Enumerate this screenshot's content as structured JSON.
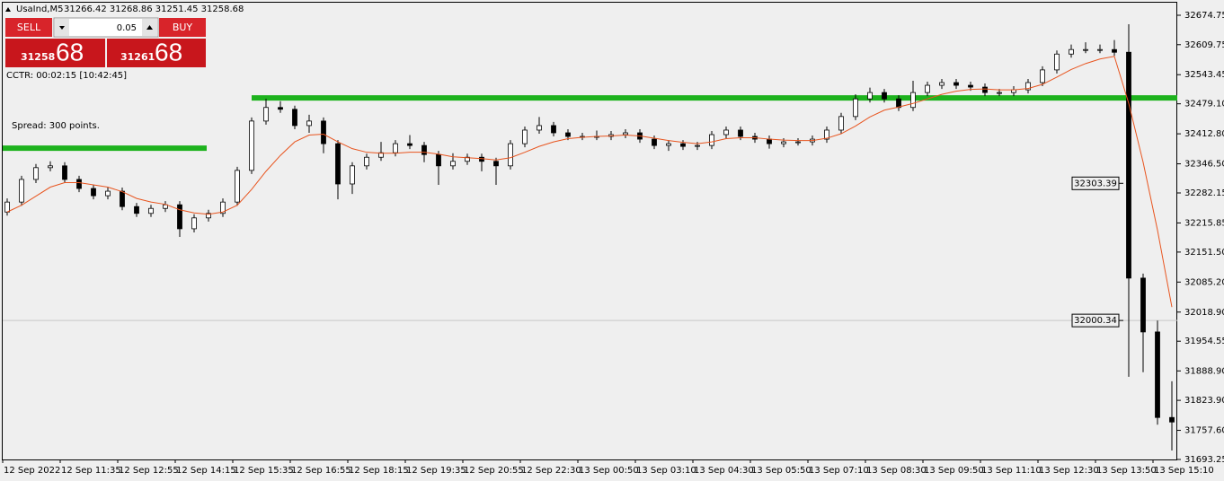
{
  "header": {
    "symbol": "UsaInd,M5",
    "ohlc": "31266.42 31268.86 31251.45 31258.68"
  },
  "trade_panel": {
    "sell": "SELL",
    "buy": "BUY",
    "lot": "0.05",
    "bid_main": "31258",
    "bid_big": "68",
    "ask_main": "31261",
    "ask_big": "68",
    "cctr": "CCTR: 00:02:15 [10:42:45]",
    "spread": "Spread: 300 points."
  },
  "chart_data": {
    "type": "candlestick",
    "x_labels": [
      "12 Sep 2022",
      "12 Sep 11:35",
      "12 Sep 12:55",
      "12 Sep 14:15",
      "12 Sep 15:35",
      "12 Sep 16:55",
      "12 Sep 18:15",
      "12 Sep 19:35",
      "12 Sep 20:55",
      "12 Sep 22:30",
      "13 Sep 00:50",
      "13 Sep 03:10",
      "13 Sep 04:30",
      "13 Sep 05:50",
      "13 Sep 07:10",
      "13 Sep 08:30",
      "13 Sep 09:50",
      "13 Sep 11:10",
      "13 Sep 12:30",
      "13 Sep 13:50",
      "13 Sep 15:10"
    ],
    "open": [
      32240,
      32262,
      32312,
      32338,
      32342,
      32312,
      32292,
      32276,
      32286,
      32252,
      32237,
      32248,
      32256,
      32203,
      32227,
      32237,
      32262,
      32332,
      32441,
      32471,
      32467,
      32431,
      32441,
      32391,
      32302,
      32342,
      32361,
      32371,
      32391,
      32387,
      32367,
      32342,
      32352,
      32361,
      32352,
      32342,
      32391,
      32421,
      32431,
      32415,
      32407,
      32407,
      32407,
      32411,
      32415,
      32401,
      32387,
      32391,
      32385,
      32387,
      32411,
      32421,
      32407,
      32401,
      32391,
      32395,
      32395,
      32401,
      32421,
      32451,
      32490,
      32504,
      32490,
      32471,
      32504,
      32520,
      32526,
      32520,
      32516,
      32504,
      32504,
      32510,
      32526,
      32554,
      32589,
      32599,
      32599,
      32599,
      32593,
      32094,
      31975,
      31786
    ],
    "high": [
      32270,
      32320,
      32346,
      32352,
      32350,
      32320,
      32300,
      32294,
      32294,
      32260,
      32256,
      32264,
      32264,
      32235,
      32245,
      32270,
      32340,
      32449,
      32490,
      32485,
      32475,
      32455,
      32449,
      32399,
      32350,
      32369,
      32395,
      32399,
      32410,
      32395,
      32375,
      32370,
      32369,
      32369,
      32360,
      32399,
      32429,
      32450,
      32439,
      32423,
      32415,
      32420,
      32419,
      32423,
      32423,
      32409,
      32399,
      32399,
      32395,
      32419,
      32429,
      32429,
      32415,
      32409,
      32403,
      32403,
      32409,
      32429,
      32459,
      32500,
      32515,
      32512,
      32498,
      32530,
      32528,
      32534,
      32534,
      32528,
      32524,
      32512,
      32518,
      32534,
      32562,
      32597,
      32610,
      32615,
      32610,
      32620,
      32655,
      32104,
      32000,
      31866
    ],
    "low": [
      32232,
      32254,
      32304,
      32330,
      32304,
      32284,
      32268,
      32268,
      32244,
      32229,
      32229,
      32240,
      32185,
      32195,
      32219,
      32229,
      32254,
      32324,
      32433,
      32459,
      32423,
      32415,
      32370,
      32268,
      32280,
      32334,
      32353,
      32363,
      32379,
      32350,
      32300,
      32334,
      32344,
      32330,
      32300,
      32334,
      32383,
      32413,
      32407,
      32399,
      32399,
      32399,
      32399,
      32403,
      32393,
      32379,
      32375,
      32377,
      32377,
      32379,
      32403,
      32399,
      32393,
      32380,
      32383,
      32387,
      32387,
      32393,
      32413,
      32443,
      32482,
      32482,
      32463,
      32463,
      32496,
      32512,
      32512,
      32508,
      32496,
      32496,
      32496,
      32502,
      32518,
      32546,
      32581,
      32591,
      32591,
      32585,
      31876,
      31886,
      31770,
      31713
    ],
    "close": [
      32262,
      32312,
      32338,
      32342,
      32312,
      32292,
      32276,
      32286,
      32252,
      32237,
      32248,
      32256,
      32203,
      32227,
      32237,
      32262,
      32332,
      32441,
      32471,
      32467,
      32431,
      32441,
      32391,
      32302,
      32342,
      32361,
      32371,
      32391,
      32387,
      32367,
      32342,
      32352,
      32361,
      32352,
      32342,
      32391,
      32421,
      32431,
      32415,
      32407,
      32407,
      32407,
      32411,
      32415,
      32401,
      32387,
      32391,
      32385,
      32387,
      32411,
      32421,
      32407,
      32401,
      32391,
      32395,
      32395,
      32401,
      32421,
      32451,
      32490,
      32504,
      32490,
      32471,
      32504,
      32520,
      32526,
      32520,
      32516,
      32504,
      32504,
      32510,
      32526,
      32554,
      32589,
      32599,
      32599,
      32599,
      32593,
      32094,
      31975,
      31786,
      31776
    ],
    "ma": [
      32240,
      32255,
      32275,
      32295,
      32305,
      32305,
      32300,
      32295,
      32285,
      32270,
      32262,
      32257,
      32245,
      32238,
      32235,
      32240,
      32255,
      32290,
      32330,
      32365,
      32395,
      32410,
      32412,
      32395,
      32380,
      32372,
      32370,
      32370,
      32372,
      32372,
      32368,
      32362,
      32360,
      32358,
      32355,
      32360,
      32372,
      32385,
      32395,
      32402,
      32405,
      32407,
      32408,
      32410,
      32408,
      32403,
      32398,
      32394,
      32391,
      32395,
      32402,
      32404,
      32404,
      32401,
      32399,
      32398,
      32398,
      32403,
      32413,
      32430,
      32450,
      32465,
      32472,
      32480,
      32490,
      32500,
      32507,
      32511,
      32512,
      32510,
      32510,
      32513,
      32522,
      32538,
      32555,
      32568,
      32578,
      32584,
      32480,
      32350,
      32200,
      32030
    ],
    "ma_color": "#e8541e",
    "up_color": "#ffffff",
    "down_color": "#000000",
    "levels": [
      32381,
      32492
    ],
    "level_color": "#1db21d",
    "price_labels": [
      {
        "value": 32303.39,
        "label": "32303.39"
      },
      {
        "value": 32000.34,
        "label": "32000.34"
      }
    ],
    "ylim": [
      31693.25,
      32674.75
    ],
    "yticks": [
      32674.75,
      32609.75,
      32543.45,
      {
        "value": 32479.1,
        "label": "32479.10"
      },
      {
        "value": 32412.8,
        "label": "32412.80"
      },
      {
        "value": 32346.5,
        "label": "32346.50"
      },
      32282.15,
      32215.85,
      {
        "value": 32151.5,
        "label": "32151.50"
      },
      {
        "value": 32085.2,
        "label": "32085.20"
      },
      {
        "value": 32018.9,
        "label": "32018.90"
      },
      31954.55,
      {
        "value": 31888.9,
        "label": "31888.90"
      },
      {
        "value": 31823.9,
        "label": "31823.90"
      },
      {
        "value": 31757.6,
        "label": "31757.60"
      },
      31693.25
    ]
  }
}
